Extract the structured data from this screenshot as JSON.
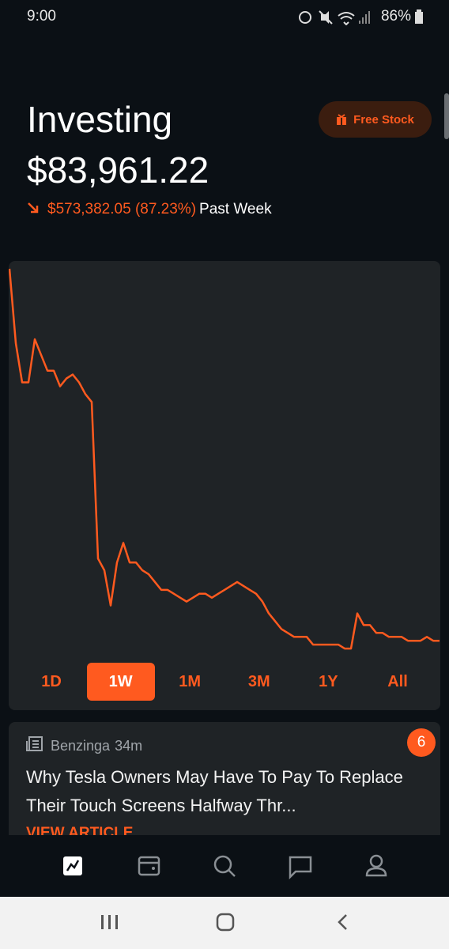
{
  "status_bar": {
    "time": "9:00",
    "battery": "86%"
  },
  "header": {
    "title": "Investing",
    "value": "$83,961.22",
    "change": "$573,382.05 (87.23%)",
    "period": "Past Week",
    "free_stock": "Free Stock"
  },
  "chart_data": {
    "type": "line",
    "color": "#ff5a1f",
    "ylim": [
      0,
      100
    ],
    "values": [
      99,
      80,
      70,
      70,
      81,
      77,
      73,
      73,
      69,
      71,
      72,
      70,
      67,
      65,
      25,
      22,
      13,
      24,
      29,
      24,
      24,
      22,
      21,
      19,
      17,
      17,
      16,
      15,
      14,
      15,
      16,
      16,
      15,
      16,
      17,
      18,
      19,
      18,
      17,
      16,
      14,
      11,
      9,
      7,
      6,
      5,
      5,
      5,
      3,
      3,
      3,
      3,
      3,
      2,
      2,
      11,
      8,
      8,
      6,
      6,
      5,
      5,
      5,
      4,
      4,
      4,
      5,
      4,
      4
    ]
  },
  "ranges": {
    "options": [
      "1D",
      "1W",
      "1M",
      "3M",
      "1Y",
      "All"
    ],
    "selected": 1
  },
  "news": {
    "source": "Benzinga",
    "time": "34m",
    "badge": "6",
    "headline": "Why Tesla Owners May Have To Pay To Replace Their Touch Screens Halfway Thr...",
    "link": "VIEW ARTICLE"
  }
}
